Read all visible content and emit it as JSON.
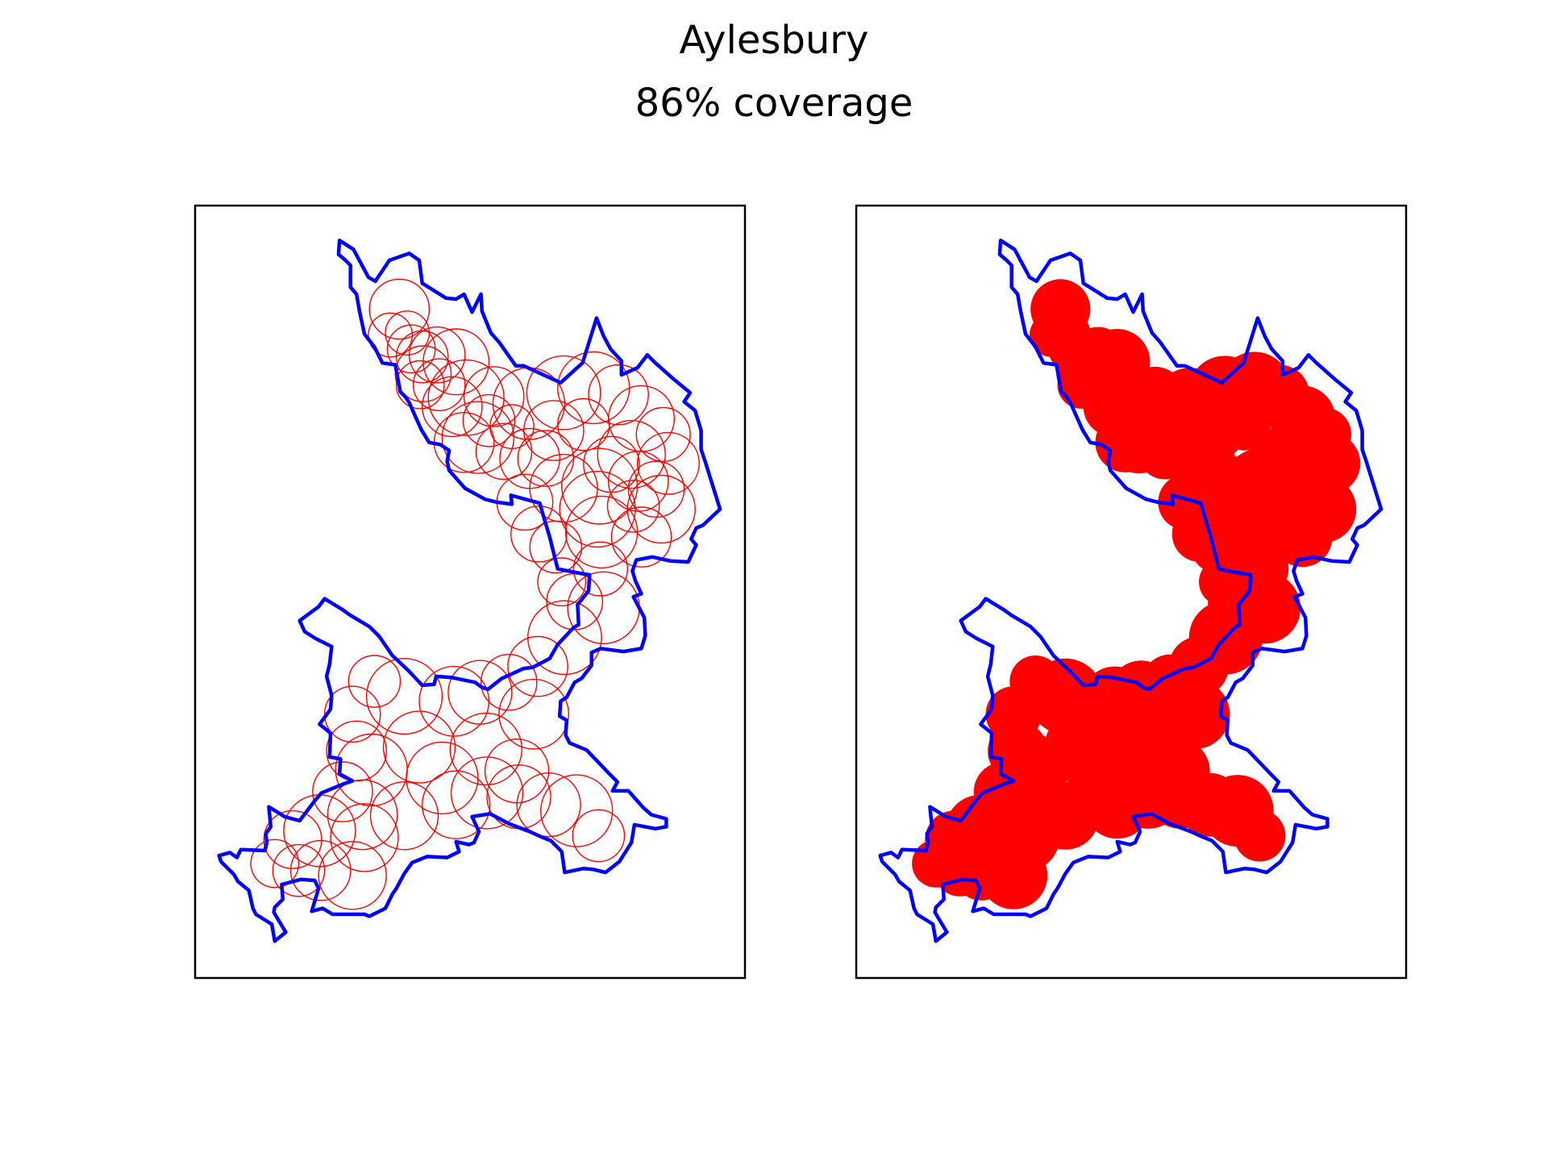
{
  "title": "Aylesbury",
  "subtitle": "86% coverage",
  "colors": {
    "boundary": "#0000ff",
    "circles": "#ff0000",
    "frame": "#000000"
  },
  "chart_data": [
    {
      "type": "scatter",
      "panel": "left",
      "style": "outline",
      "title": "",
      "xlabel": "",
      "ylabel": "",
      "grid": false,
      "axes_ticks": false,
      "xlim": [
        0,
        552
      ],
      "ylim": [
        0,
        776
      ],
      "boundary": [
        [
          145,
          35
        ],
        [
          159,
          44
        ],
        [
          174,
          72
        ],
        [
          181,
          76
        ],
        [
          195,
          55
        ],
        [
          215,
          48
        ],
        [
          225,
          55
        ],
        [
          228,
          78
        ],
        [
          252,
          93
        ],
        [
          262,
          94
        ],
        [
          270,
          89
        ],
        [
          278,
          107
        ],
        [
          287,
          89
        ],
        [
          288,
          106
        ],
        [
          297,
          128
        ],
        [
          305,
          137
        ],
        [
          322,
          161
        ],
        [
          330,
          161
        ],
        [
          367,
          178
        ],
        [
          389,
          158
        ],
        [
          403,
          113
        ],
        [
          410,
          131
        ],
        [
          417,
          144
        ],
        [
          428,
          156
        ],
        [
          428,
          170
        ],
        [
          444,
          163
        ],
        [
          454,
          150
        ],
        [
          462,
          158
        ],
        [
          480,
          174
        ],
        [
          497,
          188
        ],
        [
          491,
          197
        ],
        [
          502,
          206
        ],
        [
          508,
          226
        ],
        [
          508,
          245
        ],
        [
          512,
          257
        ],
        [
          527,
          305
        ],
        [
          510,
          321
        ],
        [
          503,
          324
        ],
        [
          498,
          335
        ],
        [
          503,
          341
        ],
        [
          495,
          358
        ],
        [
          477,
          357
        ],
        [
          459,
          353
        ],
        [
          443,
          356
        ],
        [
          439,
          367
        ],
        [
          442,
          377
        ],
        [
          448,
          390
        ],
        [
          440,
          393
        ],
        [
          451,
          414
        ],
        [
          452,
          432
        ],
        [
          448,
          445
        ],
        [
          430,
          448
        ],
        [
          407,
          445
        ],
        [
          398,
          449
        ],
        [
          398,
          462
        ],
        [
          388,
          475
        ],
        [
          381,
          479
        ],
        [
          373,
          494
        ],
        [
          367,
          498
        ],
        [
          366,
          513
        ],
        [
          373,
          517
        ],
        [
          372,
          532
        ],
        [
          376,
          540
        ],
        [
          393,
          547
        ],
        [
          416,
          571
        ],
        [
          424,
          579
        ],
        [
          419,
          588
        ],
        [
          435,
          588
        ],
        [
          450,
          605
        ],
        [
          458,
          612
        ],
        [
          473,
          616
        ],
        [
          473,
          624
        ],
        [
          462,
          626
        ],
        [
          441,
          622
        ],
        [
          438,
          640
        ],
        [
          426,
          659
        ],
        [
          412,
          670
        ],
        [
          400,
          667
        ],
        [
          390,
          666
        ],
        [
          371,
          670
        ],
        [
          368,
          649
        ],
        [
          357,
          638
        ],
        [
          347,
          634
        ],
        [
          336,
          629
        ],
        [
          315,
          621
        ],
        [
          296,
          611
        ],
        [
          278,
          614
        ],
        [
          285,
          629
        ],
        [
          280,
          640
        ],
        [
          275,
          642
        ],
        [
          262,
          639
        ],
        [
          265,
          649
        ],
        [
          253,
          655
        ],
        [
          233,
          654
        ],
        [
          218,
          660
        ],
        [
          210,
          671
        ],
        [
          202,
          686
        ],
        [
          198,
          692
        ],
        [
          191,
          706
        ],
        [
          175,
          714
        ],
        [
          170,
          712
        ],
        [
          138,
          712
        ],
        [
          128,
          706
        ],
        [
          117,
          709
        ],
        [
          124,
          686
        ],
        [
          120,
          678
        ],
        [
          106,
          677
        ],
        [
          87,
          682
        ],
        [
          88,
          697
        ],
        [
          80,
          705
        ],
        [
          79,
          710
        ],
        [
          91,
          730
        ],
        [
          80,
          739
        ],
        [
          77,
          722
        ],
        [
          61,
          712
        ],
        [
          58,
          706
        ],
        [
          54,
          688
        ],
        [
          43,
          679
        ],
        [
          39,
          672
        ],
        [
          26,
          659
        ],
        [
          24,
          653
        ],
        [
          35,
          650
        ],
        [
          42,
          655
        ],
        [
          46,
          647
        ],
        [
          70,
          648
        ],
        [
          72,
          640
        ],
        [
          71,
          631
        ],
        [
          76,
          624
        ],
        [
          74,
          604
        ],
        [
          90,
          614
        ],
        [
          105,
          618
        ],
        [
          120,
          598
        ],
        [
          127,
          590
        ],
        [
          149,
          581
        ],
        [
          158,
          578
        ],
        [
          145,
          571
        ],
        [
          146,
          556
        ],
        [
          135,
          554
        ],
        [
          136,
          530
        ],
        [
          125,
          521
        ],
        [
          136,
          506
        ],
        [
          137,
          492
        ],
        [
          132,
          473
        ],
        [
          135,
          461
        ],
        [
          137,
          443
        ],
        [
          121,
          435
        ],
        [
          110,
          428
        ],
        [
          105,
          417
        ],
        [
          124,
          403
        ],
        [
          130,
          395
        ],
        [
          148,
          406
        ],
        [
          155,
          411
        ],
        [
          175,
          423
        ],
        [
          185,
          433
        ],
        [
          198,
          452
        ],
        [
          215,
          468
        ],
        [
          228,
          482
        ],
        [
          240,
          481
        ],
        [
          242,
          473
        ],
        [
          257,
          474
        ],
        [
          281,
          479
        ],
        [
          288,
          484
        ],
        [
          294,
          486
        ],
        [
          308,
          475
        ],
        [
          330,
          465
        ],
        [
          339,
          464
        ],
        [
          356,
          455
        ],
        [
          364,
          441
        ],
        [
          380,
          424
        ],
        [
          385,
          421
        ],
        [
          384,
          401
        ],
        [
          395,
          387
        ],
        [
          396,
          371
        ],
        [
          384,
          369
        ],
        [
          364,
          365
        ],
        [
          356,
          333
        ],
        [
          350,
          313
        ],
        [
          346,
          299
        ],
        [
          317,
          291
        ],
        [
          318,
          300
        ],
        [
          303,
          298
        ],
        [
          291,
          295
        ],
        [
          271,
          284
        ],
        [
          255,
          266
        ],
        [
          253,
          257
        ],
        [
          255,
          246
        ],
        [
          246,
          240
        ],
        [
          235,
          238
        ],
        [
          227,
          225
        ],
        [
          215,
          198
        ],
        [
          211,
          192
        ],
        [
          206,
          187
        ],
        [
          201,
          160
        ],
        [
          188,
          158
        ],
        [
          180,
          142
        ],
        [
          170,
          129
        ],
        [
          165,
          106
        ],
        [
          162,
          89
        ],
        [
          156,
          82
        ],
        [
          156,
          60
        ],
        [
          151,
          55
        ],
        [
          144,
          49
        ]
      ],
      "circles": [
        [
          205,
          104,
          30
        ],
        [
          213,
          128,
          22
        ],
        [
          217,
          144,
          24
        ],
        [
          228,
          152,
          26
        ],
        [
          243,
          150,
          28
        ],
        [
          262,
          157,
          33
        ],
        [
          272,
          193,
          38
        ],
        [
          300,
          192,
          30
        ],
        [
          335,
          199,
          36
        ],
        [
          370,
          188,
          37
        ],
        [
          400,
          183,
          36
        ],
        [
          425,
          190,
          30
        ],
        [
          448,
          214,
          33
        ],
        [
          470,
          230,
          27
        ],
        [
          475,
          259,
          31
        ],
        [
          468,
          305,
          34
        ],
        [
          448,
          333,
          30
        ],
        [
          408,
          328,
          36
        ],
        [
          407,
          365,
          27
        ],
        [
          410,
          404,
          36
        ],
        [
          381,
          398,
          28
        ],
        [
          368,
          378,
          24
        ],
        [
          336,
          254,
          30
        ],
        [
          310,
          247,
          28
        ],
        [
          284,
          233,
          36
        ],
        [
          258,
          202,
          30
        ],
        [
          245,
          180,
          26
        ],
        [
          229,
          169,
          28
        ],
        [
          406,
          282,
          38
        ],
        [
          370,
          284,
          34
        ],
        [
          352,
          254,
          28
        ],
        [
          362,
          343,
          26
        ],
        [
          371,
          434,
          37
        ],
        [
          344,
          463,
          30
        ],
        [
          315,
          479,
          28
        ],
        [
          286,
          489,
          32
        ],
        [
          260,
          498,
          35
        ],
        [
          210,
          493,
          38
        ],
        [
          180,
          478,
          26
        ],
        [
          158,
          511,
          28
        ],
        [
          162,
          548,
          30
        ],
        [
          177,
          567,
          36
        ],
        [
          148,
          589,
          30
        ],
        [
          168,
          612,
          35
        ],
        [
          125,
          628,
          36
        ],
        [
          98,
          637,
          29
        ],
        [
          80,
          661,
          24
        ],
        [
          104,
          668,
          26
        ],
        [
          126,
          668,
          30
        ],
        [
          158,
          673,
          34
        ],
        [
          170,
          635,
          34
        ],
        [
          210,
          613,
          34
        ],
        [
          262,
          602,
          34
        ],
        [
          293,
          590,
          36
        ],
        [
          325,
          594,
          32
        ],
        [
          355,
          602,
          32
        ],
        [
          383,
          608,
          36
        ],
        [
          405,
          633,
          26
        ],
        [
          225,
          544,
          36
        ],
        [
          248,
          575,
          36
        ],
        [
          292,
          546,
          36
        ],
        [
          323,
          568,
          32
        ],
        [
          340,
          511,
          35
        ],
        [
          404,
          305,
          38
        ],
        [
          418,
          260,
          28
        ],
        [
          438,
          250,
          34
        ],
        [
          445,
          277,
          30
        ],
        [
          463,
          285,
          28
        ],
        [
          345,
          330,
          28
        ],
        [
          331,
          298,
          28
        ],
        [
          295,
          216,
          26
        ],
        [
          318,
          222,
          22
        ],
        [
          270,
          238,
          30
        ],
        [
          226,
          180,
          24
        ],
        [
          196,
          130,
          22
        ],
        [
          390,
          220,
          26
        ],
        [
          440,
          302,
          26
        ],
        [
          360,
          226,
          30
        ]
      ]
    },
    {
      "type": "scatter",
      "panel": "right",
      "style": "filled",
      "title": "",
      "xlabel": "",
      "ylabel": "",
      "grid": false,
      "axes_ticks": false,
      "xlim": [
        0,
        552
      ],
      "ylim": [
        0,
        776
      ],
      "boundary": "same as left panel",
      "circles": "same as left panel"
    }
  ]
}
